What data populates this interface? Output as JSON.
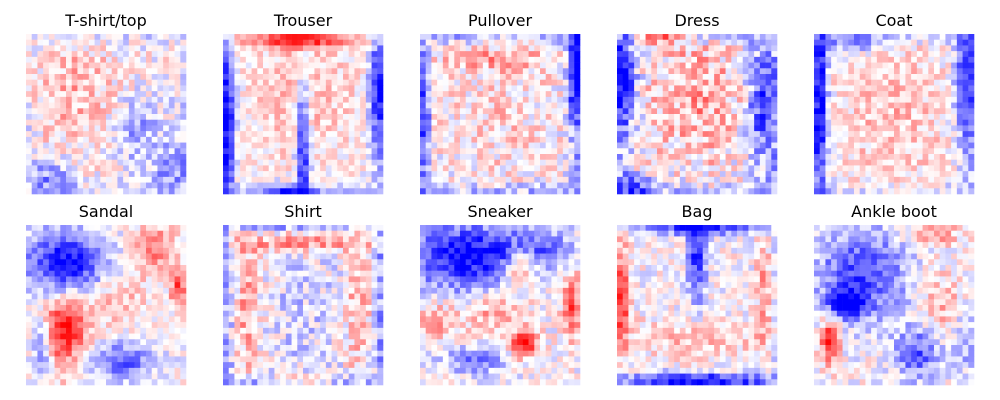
{
  "chart_data": {
    "type": "heatmap",
    "grid": {
      "rows": 2,
      "cols": 5
    },
    "image_resolution": [
      28,
      28
    ],
    "colormap": {
      "low": "#0000ff",
      "mid": "#ffffff",
      "high": "#ff0000"
    },
    "value_range": [
      -1,
      1
    ],
    "axes": "off",
    "panels": [
      {
        "title": "T-shirt/top",
        "pattern": "diffuse light red over the shirt body with scattered blue speckles near the edges and lower corners",
        "features": [
          {
            "x": 0.3,
            "y": 0.35,
            "sx": 0.2,
            "sy": 0.25,
            "v": 0.3
          },
          {
            "x": 0.7,
            "y": 0.6,
            "sx": 0.12,
            "sy": 0.15,
            "v": -0.35
          },
          {
            "x": 0.15,
            "y": 0.9,
            "sx": 0.1,
            "sy": 0.08,
            "v": -0.45
          },
          {
            "x": 0.9,
            "y": 0.85,
            "sx": 0.08,
            "sy": 0.1,
            "v": -0.4
          }
        ],
        "edge": {
          "v": -0.15,
          "w": 0.06
        },
        "noise": 0.28
      },
      {
        "title": "Trouser",
        "pattern": "red band along the top edge, strong blue vertical stripe between the legs, blue on the outer sides",
        "features": [
          {
            "x": 0.5,
            "y": 0.03,
            "sx": 0.3,
            "sy": 0.04,
            "v": 0.95
          },
          {
            "x": 0.5,
            "y": 0.7,
            "sx": 0.03,
            "sy": 0.3,
            "v": -1.0
          },
          {
            "x": 0.03,
            "y": 0.55,
            "sx": 0.03,
            "sy": 0.35,
            "v": -0.9
          },
          {
            "x": 0.97,
            "y": 0.35,
            "sx": 0.04,
            "sy": 0.25,
            "v": -0.8
          },
          {
            "x": 0.5,
            "y": 0.4,
            "sx": 0.25,
            "sy": 0.3,
            "v": 0.25
          },
          {
            "x": 0.4,
            "y": 0.98,
            "sx": 0.12,
            "sy": 0.03,
            "v": -0.7
          }
        ],
        "edge": {
          "v": -0.25,
          "w": 0.05
        },
        "noise": 0.22
      },
      {
        "title": "Pullover",
        "pattern": "blue on the right edge and top-right corner, light red inner outline of the garment",
        "features": [
          {
            "x": 0.98,
            "y": 0.2,
            "sx": 0.04,
            "sy": 0.25,
            "v": -1.0
          },
          {
            "x": 0.02,
            "y": 0.55,
            "sx": 0.03,
            "sy": 0.3,
            "v": -0.45
          },
          {
            "x": 0.5,
            "y": 0.15,
            "sx": 0.3,
            "sy": 0.06,
            "v": 0.3
          },
          {
            "x": 0.5,
            "y": 0.55,
            "sx": 0.25,
            "sy": 0.3,
            "v": 0.15
          }
        ],
        "edge": {
          "v": -0.35,
          "w": 0.05
        },
        "noise": 0.3
      },
      {
        "title": "Dress",
        "pattern": "blue on left and right margins, reddish centre, blue speckles at the bottom",
        "features": [
          {
            "x": 0.05,
            "y": 0.3,
            "sx": 0.05,
            "sy": 0.2,
            "v": -0.95
          },
          {
            "x": 0.9,
            "y": 0.45,
            "sx": 0.06,
            "sy": 0.25,
            "v": -0.75
          },
          {
            "x": 0.5,
            "y": 0.4,
            "sx": 0.2,
            "sy": 0.3,
            "v": 0.35
          },
          {
            "x": 0.25,
            "y": 0.02,
            "sx": 0.1,
            "sy": 0.03,
            "v": 0.85
          },
          {
            "x": 0.1,
            "y": 0.95,
            "sx": 0.08,
            "sy": 0.05,
            "v": -0.65
          }
        ],
        "edge": {
          "v": -0.3,
          "w": 0.05
        },
        "noise": 0.35
      },
      {
        "title": "Coat",
        "pattern": "strong blue vertical band on the left edge, blue top-right, light red body",
        "features": [
          {
            "x": 0.04,
            "y": 0.45,
            "sx": 0.03,
            "sy": 0.4,
            "v": -1.0
          },
          {
            "x": 0.95,
            "y": 0.3,
            "sx": 0.05,
            "sy": 0.3,
            "v": -0.8
          },
          {
            "x": 0.5,
            "y": 0.5,
            "sx": 0.25,
            "sy": 0.35,
            "v": 0.25
          },
          {
            "x": 0.25,
            "y": 0.05,
            "sx": 0.15,
            "sy": 0.05,
            "v": -0.5
          }
        ],
        "edge": {
          "v": -0.2,
          "w": 0.05
        },
        "noise": 0.25
      },
      {
        "title": "Sandal",
        "pattern": "large blue blob in the upper-left, red region lower-left, red top-right, blue wave in the lower middle",
        "features": [
          {
            "x": 0.25,
            "y": 0.25,
            "sx": 0.18,
            "sy": 0.15,
            "v": -1.0
          },
          {
            "x": 0.22,
            "y": 0.65,
            "sx": 0.12,
            "sy": 0.18,
            "v": 0.9
          },
          {
            "x": 0.8,
            "y": 0.15,
            "sx": 0.1,
            "sy": 0.1,
            "v": 0.55
          },
          {
            "x": 0.6,
            "y": 0.85,
            "sx": 0.15,
            "sy": 0.08,
            "v": -0.65
          },
          {
            "x": 0.1,
            "y": 0.75,
            "sx": 0.05,
            "sy": 0.15,
            "v": -0.75
          },
          {
            "x": 0.55,
            "y": 0.45,
            "sx": 0.15,
            "sy": 0.12,
            "v": 0.3
          },
          {
            "x": 0.95,
            "y": 0.4,
            "sx": 0.03,
            "sy": 0.08,
            "v": 0.8
          }
        ],
        "edge": {
          "v": 0.0,
          "w": 0.05
        },
        "noise": 0.22
      },
      {
        "title": "Shirt",
        "pattern": "red outline of the shirt shape, blue on the outer edges, pale centre",
        "features": [
          {
            "x": 0.5,
            "y": 0.1,
            "sx": 0.3,
            "sy": 0.05,
            "v": 0.5
          },
          {
            "x": 0.15,
            "y": 0.5,
            "sx": 0.05,
            "sy": 0.3,
            "v": 0.35
          },
          {
            "x": 0.85,
            "y": 0.5,
            "sx": 0.05,
            "sy": 0.3,
            "v": 0.35
          },
          {
            "x": 0.5,
            "y": 0.55,
            "sx": 0.15,
            "sy": 0.3,
            "v": -0.2
          },
          {
            "x": 0.5,
            "y": 0.98,
            "sx": 0.15,
            "sy": 0.03,
            "v": 0.6
          }
        ],
        "edge": {
          "v": -0.45,
          "w": 0.05
        },
        "noise": 0.3
      },
      {
        "title": "Sneaker",
        "pattern": "blue across the upper-left, red diagonal along the shoe outline, red patches on the lower right",
        "features": [
          {
            "x": 0.25,
            "y": 0.2,
            "sx": 0.22,
            "sy": 0.15,
            "v": -0.95
          },
          {
            "x": 0.7,
            "y": 0.15,
            "sx": 0.2,
            "sy": 0.1,
            "v": -0.6
          },
          {
            "x": 0.62,
            "y": 0.25,
            "sx": 0.06,
            "sy": 0.08,
            "v": 0.75
          },
          {
            "x": 0.65,
            "y": 0.75,
            "sx": 0.06,
            "sy": 0.06,
            "v": 0.9
          },
          {
            "x": 0.95,
            "y": 0.5,
            "sx": 0.04,
            "sy": 0.15,
            "v": 0.7
          },
          {
            "x": 0.1,
            "y": 0.6,
            "sx": 0.08,
            "sy": 0.08,
            "v": 0.4
          },
          {
            "x": 0.35,
            "y": 0.85,
            "sx": 0.15,
            "sy": 0.06,
            "v": -0.5
          },
          {
            "x": 0.45,
            "y": 0.55,
            "sx": 0.15,
            "sy": 0.08,
            "v": 0.35
          }
        ],
        "edge": {
          "v": 0.0,
          "w": 0.05
        },
        "noise": 0.25
      },
      {
        "title": "Bag",
        "pattern": "red on the left edge, blue vertical stripe near the top centre, blue strip along the bottom",
        "features": [
          {
            "x": 0.03,
            "y": 0.45,
            "sx": 0.03,
            "sy": 0.25,
            "v": 0.95
          },
          {
            "x": 0.5,
            "y": 0.2,
            "sx": 0.04,
            "sy": 0.2,
            "v": -0.8
          },
          {
            "x": 0.5,
            "y": 0.97,
            "sx": 0.35,
            "sy": 0.03,
            "v": -0.9
          },
          {
            "x": 0.5,
            "y": 0.7,
            "sx": 0.35,
            "sy": 0.08,
            "v": 0.25
          },
          {
            "x": 0.92,
            "y": 0.4,
            "sx": 0.03,
            "sy": 0.25,
            "v": 0.45
          },
          {
            "x": 0.5,
            "y": 0.02,
            "sx": 0.25,
            "sy": 0.03,
            "v": -0.7
          }
        ],
        "edge": {
          "v": -0.15,
          "w": 0.05
        },
        "noise": 0.25
      },
      {
        "title": "Ankle boot",
        "pattern": "blue across the upper half, strong red rectangle lower-left, blue lower right, red speckles on the right",
        "features": [
          {
            "x": 0.3,
            "y": 0.3,
            "sx": 0.2,
            "sy": 0.2,
            "v": -0.75
          },
          {
            "x": 0.1,
            "y": 0.72,
            "sx": 0.04,
            "sy": 0.1,
            "v": 0.95
          },
          {
            "x": 0.65,
            "y": 0.8,
            "sx": 0.1,
            "sy": 0.12,
            "v": -0.65
          },
          {
            "x": 0.8,
            "y": 0.5,
            "sx": 0.1,
            "sy": 0.15,
            "v": 0.3
          },
          {
            "x": 0.75,
            "y": 0.05,
            "sx": 0.12,
            "sy": 0.05,
            "v": 0.4
          },
          {
            "x": 0.95,
            "y": 0.7,
            "sx": 0.05,
            "sy": 0.15,
            "v": -0.4
          },
          {
            "x": 0.2,
            "y": 0.5,
            "sx": 0.08,
            "sy": 0.06,
            "v": -0.9
          }
        ],
        "edge": {
          "v": 0.0,
          "w": 0.05
        },
        "noise": 0.25
      }
    ]
  }
}
